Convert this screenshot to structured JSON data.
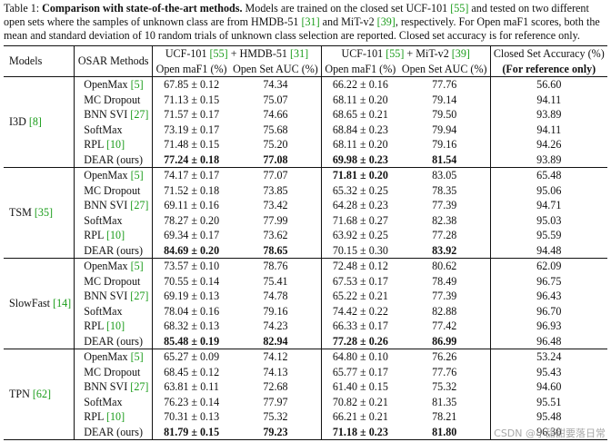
{
  "caption": {
    "label": "Table 1: ",
    "title": "Comparison with state-of-the-art methods.",
    "text1": " Models are trained on the closed set UCF-101 ",
    "cite1": "[55]",
    "text2": " and tested on two different open sets where the samples of unknown class are from HMDB-51 ",
    "cite2": "[31]",
    "text3": " and MiT-v2 ",
    "cite3": "[39]",
    "text4": ", respectively. For Open maF1 scores, both the mean and standard deviation of 10 random trials of unknown class selection are reported. Closed set accuracy is for reference only."
  },
  "header": {
    "models": "Models",
    "methods": "OSAR Methods",
    "g1_a": "UCF-101 ",
    "g1_cite1": "[55]",
    "g1_b": " + HMDB-51 ",
    "g1_cite2": "[31]",
    "g2_a": "UCF-101 ",
    "g2_cite1": "[55]",
    "g2_b": " + MiT-v2 ",
    "g2_cite2": "[39]",
    "closed": "Closed Set Accuracy (%)",
    "closed_note": "(For reference only)",
    "sub_f1": "Open maF1 (%)",
    "sub_auc": "Open Set AUC (%)"
  },
  "groups": [
    {
      "model": "I3D ",
      "cite": "[8]",
      "rows": [
        {
          "method": "OpenMax ",
          "cite": "[5]",
          "hf1": "67.85 ± 0.12",
          "hauc": "74.34",
          "mf1": "66.22 ± 0.16",
          "mauc": "77.76",
          "acc": "56.60"
        },
        {
          "method": "MC Dropout",
          "cite": "",
          "hf1": "71.13 ± 0.15",
          "hauc": "75.07",
          "mf1": "68.11 ± 0.20",
          "mauc": "79.14",
          "acc": "94.11"
        },
        {
          "method": "BNN SVI ",
          "cite": "[27]",
          "hf1": "71.57 ± 0.17",
          "hauc": "74.66",
          "mf1": "68.65 ± 0.21",
          "mauc": "79.50",
          "acc": "93.89"
        },
        {
          "method": "SoftMax",
          "cite": "",
          "hf1": "73.19 ± 0.17",
          "hauc": "75.68",
          "mf1": "68.84 ± 0.23",
          "mauc": "79.94",
          "acc": "94.11"
        },
        {
          "method": "RPL ",
          "cite": "[10]",
          "hf1": "71.48 ± 0.15",
          "hauc": "75.20",
          "mf1": "68.11 ± 0.20",
          "mauc": "79.16",
          "acc": "94.26"
        },
        {
          "method": "DEAR (ours)",
          "cite": "",
          "hf1": "77.24 ± 0.18",
          "hauc": "77.08",
          "mf1": "69.98 ± 0.23",
          "mauc": "81.54",
          "acc": "93.89",
          "bold": [
            "hf1",
            "hauc",
            "mf1",
            "mauc"
          ]
        }
      ]
    },
    {
      "model": "TSM ",
      "cite": "[35]",
      "rows": [
        {
          "method": "OpenMax ",
          "cite": "[5]",
          "hf1": "74.17 ± 0.17",
          "hauc": "77.07",
          "mf1": "71.81 ± 0.20",
          "mauc": "83.05",
          "acc": "65.48",
          "bold": [
            "mf1"
          ]
        },
        {
          "method": "MC Dropout",
          "cite": "",
          "hf1": "71.52 ± 0.18",
          "hauc": "73.85",
          "mf1": "65.32 ± 0.25",
          "mauc": "78.35",
          "acc": "95.06"
        },
        {
          "method": "BNN SVI ",
          "cite": "[27]",
          "hf1": "69.11 ± 0.16",
          "hauc": "73.42",
          "mf1": "64.28 ± 0.23",
          "mauc": "77.39",
          "acc": "94.71"
        },
        {
          "method": "SoftMax",
          "cite": "",
          "hf1": "78.27 ± 0.20",
          "hauc": "77.99",
          "mf1": "71.68 ± 0.27",
          "mauc": "82.38",
          "acc": "95.03"
        },
        {
          "method": "RPL ",
          "cite": "[10]",
          "hf1": "69.34 ± 0.17",
          "hauc": "73.62",
          "mf1": "63.92 ± 0.25",
          "mauc": "77.28",
          "acc": "95.59"
        },
        {
          "method": "DEAR (ours)",
          "cite": "",
          "hf1": "84.69 ± 0.20",
          "hauc": "78.65",
          "mf1": "70.15 ± 0.30",
          "mauc": "83.92",
          "acc": "94.48",
          "bold": [
            "hf1",
            "hauc",
            "mauc"
          ]
        }
      ]
    },
    {
      "model": "SlowFast ",
      "cite": "[14]",
      "rows": [
        {
          "method": "OpenMax ",
          "cite": "[5]",
          "hf1": "73.57 ± 0.10",
          "hauc": "78.76",
          "mf1": "72.48 ± 0.12",
          "mauc": "80.62",
          "acc": "62.09"
        },
        {
          "method": "MC Dropout",
          "cite": "",
          "hf1": "70.55 ± 0.14",
          "hauc": "75.41",
          "mf1": "67.53 ± 0.17",
          "mauc": "78.49",
          "acc": "96.75"
        },
        {
          "method": "BNN SVI ",
          "cite": "[27]",
          "hf1": "69.19 ± 0.13",
          "hauc": "74.78",
          "mf1": "65.22 ± 0.21",
          "mauc": "77.39",
          "acc": "96.43"
        },
        {
          "method": "SoftMax",
          "cite": "",
          "hf1": "78.04 ± 0.16",
          "hauc": "79.16",
          "mf1": "74.42 ± 0.22",
          "mauc": "82.88",
          "acc": "96.70"
        },
        {
          "method": "RPL ",
          "cite": "[10]",
          "hf1": "68.32 ± 0.13",
          "hauc": "74.23",
          "mf1": "66.33 ± 0.17",
          "mauc": "77.42",
          "acc": "96.93"
        },
        {
          "method": "DEAR (ours)",
          "cite": "",
          "hf1": "85.48 ± 0.19",
          "hauc": "82.94",
          "mf1": "77.28 ± 0.26",
          "mauc": "86.99",
          "acc": "96.48",
          "bold": [
            "hf1",
            "hauc",
            "mf1",
            "mauc"
          ]
        }
      ]
    },
    {
      "model": "TPN ",
      "cite": "[62]",
      "rows": [
        {
          "method": "OpenMax ",
          "cite": "[5]",
          "hf1": "65.27 ± 0.09",
          "hauc": "74.12",
          "mf1": "64.80 ± 0.10",
          "mauc": "76.26",
          "acc": "53.24"
        },
        {
          "method": "MC Dropout",
          "cite": "",
          "hf1": "68.45 ± 0.12",
          "hauc": "74.13",
          "mf1": "65.77 ± 0.17",
          "mauc": "77.76",
          "acc": "95.43"
        },
        {
          "method": "BNN SVI ",
          "cite": "[27]",
          "hf1": "63.81 ± 0.11",
          "hauc": "72.68",
          "mf1": "61.40 ± 0.15",
          "mauc": "75.32",
          "acc": "94.60"
        },
        {
          "method": "SoftMax",
          "cite": "",
          "hf1": "76.23 ± 0.14",
          "hauc": "77.97",
          "mf1": "70.82 ± 0.21",
          "mauc": "81.35",
          "acc": "95.51"
        },
        {
          "method": "RPL ",
          "cite": "[10]",
          "hf1": "70.31 ± 0.13",
          "hauc": "75.32",
          "mf1": "66.21 ± 0.21",
          "mauc": "78.21",
          "acc": "95.48"
        },
        {
          "method": "DEAR (ours)",
          "cite": "",
          "hf1": "81.79 ± 0.15",
          "hauc": "79.23",
          "mf1": "71.18 ± 0.23",
          "mauc": "81.80",
          "acc": "96.30",
          "bold": [
            "hf1",
            "hauc",
            "mf1",
            "mauc"
          ]
        }
      ]
    }
  ],
  "watermark": "CSDN @小甜甜要落日常"
}
